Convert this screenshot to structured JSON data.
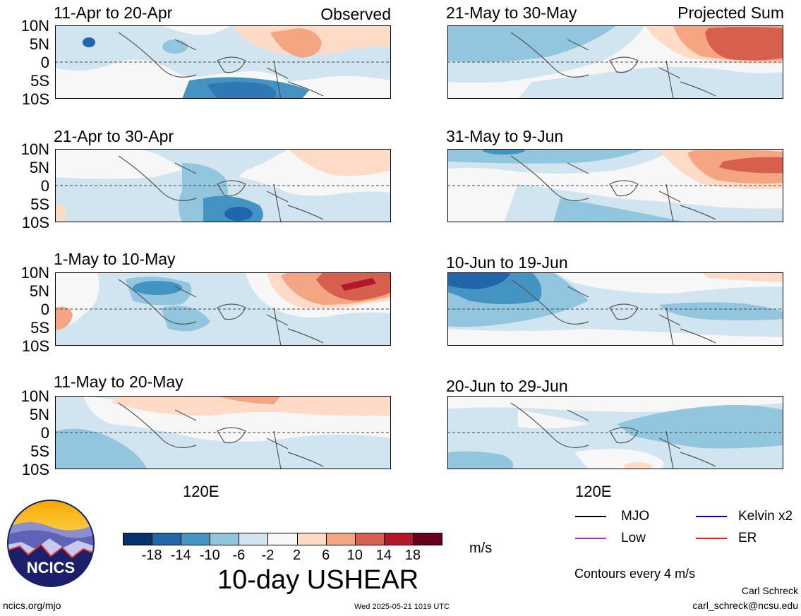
{
  "left_tag": "Observed",
  "right_tag": "Projected Sum",
  "lat_ticks": [
    "10N",
    "5N",
    "0",
    "5S",
    "10S"
  ],
  "lon_label": "120E",
  "panels_left": [
    {
      "title": "11-Apr to 20-Apr"
    },
    {
      "title": "21-Apr to 30-Apr"
    },
    {
      "title": "1-May to 10-May"
    },
    {
      "title": "11-May to 20-May"
    }
  ],
  "panels_right": [
    {
      "title": "21-May to 30-May"
    },
    {
      "title": "31-May to 9-Jun"
    },
    {
      "title": "10-Jun to 19-Jun"
    },
    {
      "title": "20-Jun to 29-Jun"
    }
  ],
  "colorbar": {
    "colors": [
      "#08306b",
      "#2166ac",
      "#4393c3",
      "#92c5de",
      "#d1e5f0",
      "#f7f7f7",
      "#fddbc7",
      "#f4a582",
      "#d6604d",
      "#b2182b",
      "#67001f"
    ],
    "labels": [
      "-18",
      "-14",
      "-10",
      "-6",
      "-2",
      "2",
      "6",
      "10",
      "14",
      "18"
    ],
    "units": "m/s"
  },
  "title": "10-day USHEAR",
  "legend": [
    {
      "label": "MJO",
      "color": "#000000"
    },
    {
      "label": "Kelvin x2",
      "color": "#0000cc"
    },
    {
      "label": "Low",
      "color": "#9933cc"
    },
    {
      "label": "ER",
      "color": "#dd2222"
    }
  ],
  "contour_note": "Contours every 4 m/s",
  "logo_text": "NCICS",
  "footer_left": "ncics.org/mjo",
  "footer_mid": "Wed 2025-05-21 1019 UTC",
  "author": "Carl Schreck",
  "email": "carl_schreck@ncsu.edu",
  "colors": {
    "light_blue": "#d1e5f0",
    "mid_blue": "#92c5de",
    "blue": "#4393c3",
    "dark_blue": "#2166ac",
    "peach": "#fddbc7",
    "salmon": "#f4a582",
    "red": "#d6604d",
    "dark_red": "#b2182b"
  }
}
